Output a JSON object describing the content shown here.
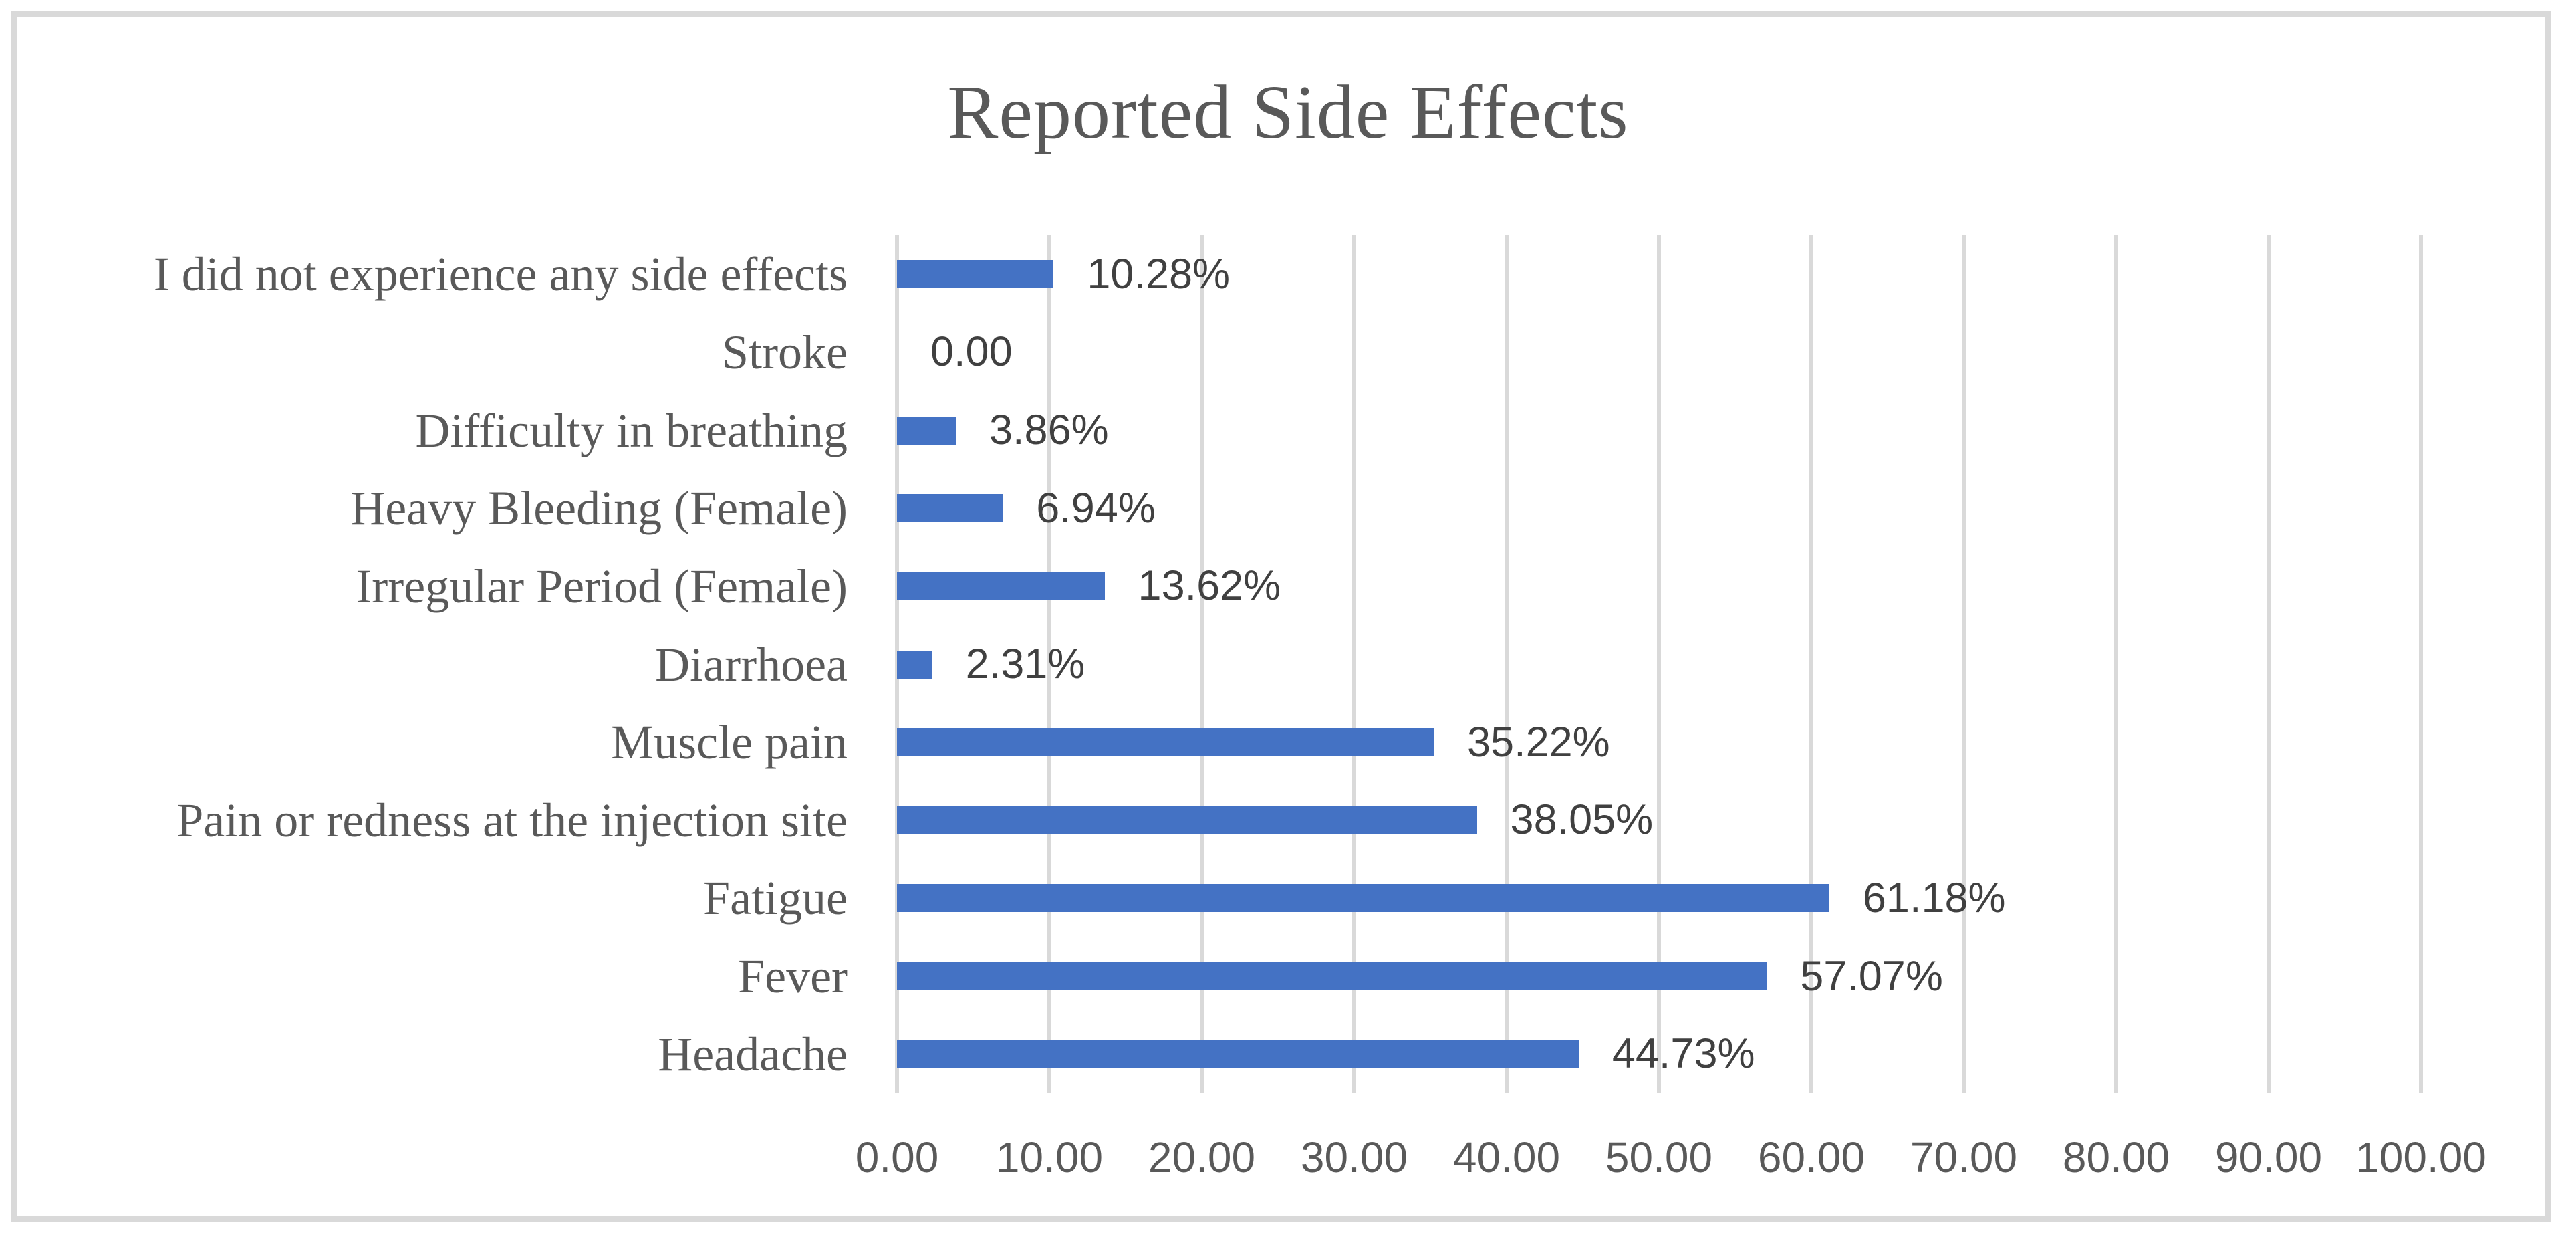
{
  "chart_data": {
    "type": "bar",
    "orientation": "horizontal",
    "title": "Reported Side Effects",
    "xlabel": "",
    "ylabel": "",
    "grid": true,
    "legend": false,
    "xlim": [
      0,
      100
    ],
    "categories": [
      "I did not experience any side effects",
      "Stroke",
      "Difficulty in breathing",
      "Heavy Bleeding (Female)",
      "Irregular Period (Female)",
      "Diarrhoea",
      "Muscle pain",
      "Pain or redness at the injection site",
      "Fatigue",
      "Fever",
      "Headache"
    ],
    "values": [
      10.28,
      0.0,
      3.86,
      6.94,
      13.62,
      2.31,
      35.22,
      38.05,
      61.18,
      57.07,
      44.73
    ],
    "data_labels": [
      "10.28%",
      "0.00",
      "3.86%",
      "6.94%",
      "13.62%",
      "2.31%",
      "35.22%",
      "38.05%",
      "61.18%",
      "57.07%",
      "44.73%"
    ],
    "x_ticks": [
      0,
      10,
      20,
      30,
      40,
      50,
      60,
      70,
      80,
      90,
      100
    ],
    "x_tick_labels": [
      "0.00",
      "10.00",
      "20.00",
      "30.00",
      "40.00",
      "50.00",
      "60.00",
      "70.00",
      "80.00",
      "90.00",
      "100.00"
    ],
    "colors": {
      "bar": "#4472C4",
      "gridline": "#D9D9D9",
      "frame_border": "#D9D9D9",
      "title_text": "#595959",
      "axis_text": "#595959",
      "category_text": "#595959",
      "data_label_text": "#404040"
    }
  }
}
